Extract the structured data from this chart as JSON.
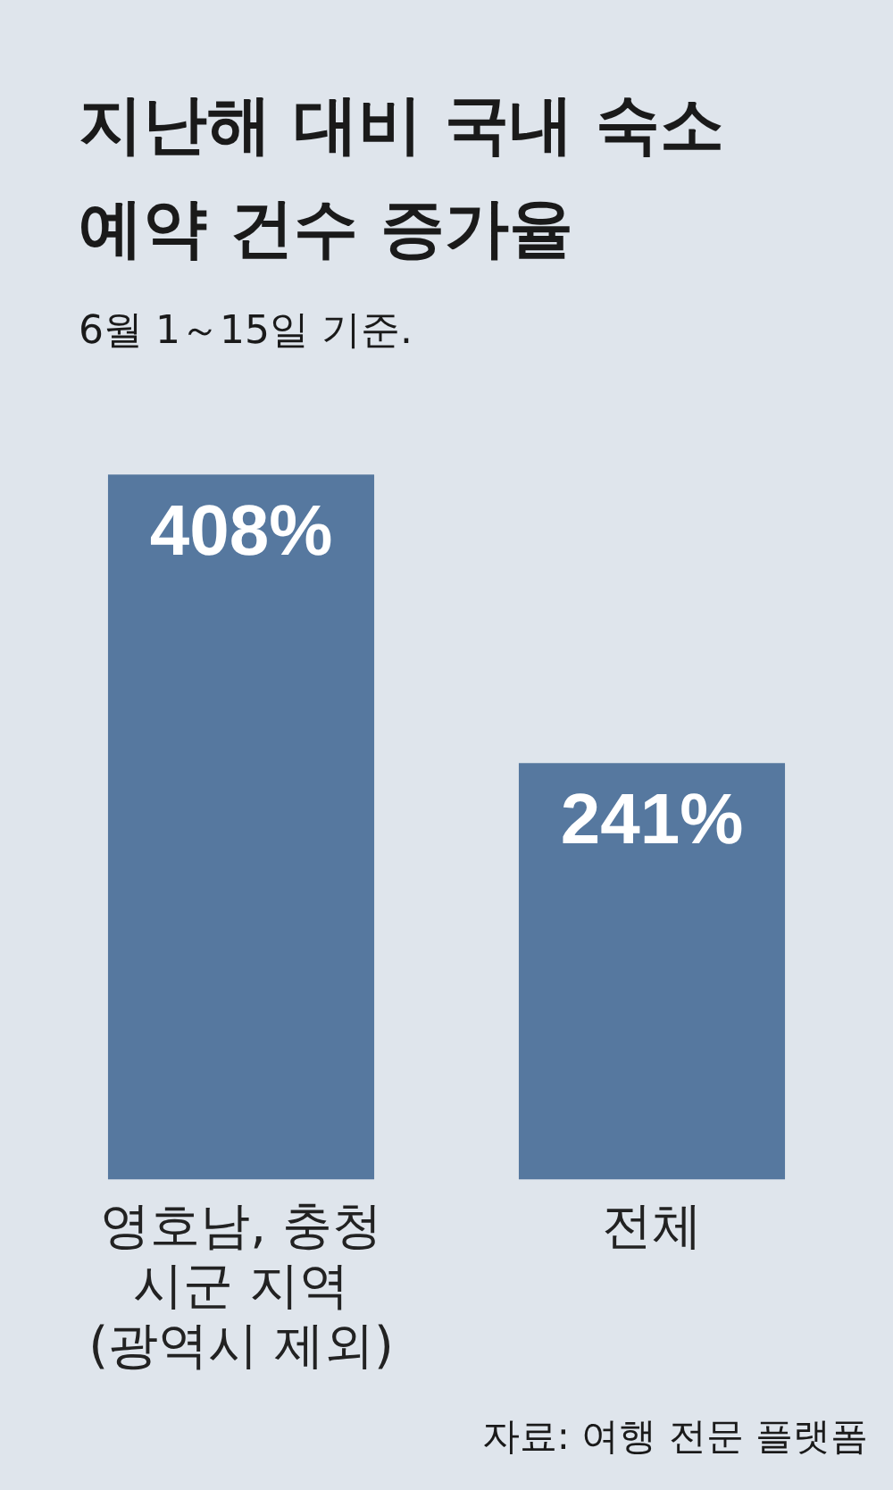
{
  "chart_data": {
    "type": "bar",
    "title": "지난해 대비 국내 숙소\n예약 건수 증가율",
    "subtitle": "6월 1～15일 기준.",
    "categories": [
      "영호남, 충청\n시군 지역\n(광역시 제외)",
      "전체"
    ],
    "values": [
      408,
      241
    ],
    "color": "#56789f",
    "value_labels": [
      "408%",
      "241%"
    ],
    "annotations": [
      "자료: 여행 전문 플랫폼"
    ]
  }
}
